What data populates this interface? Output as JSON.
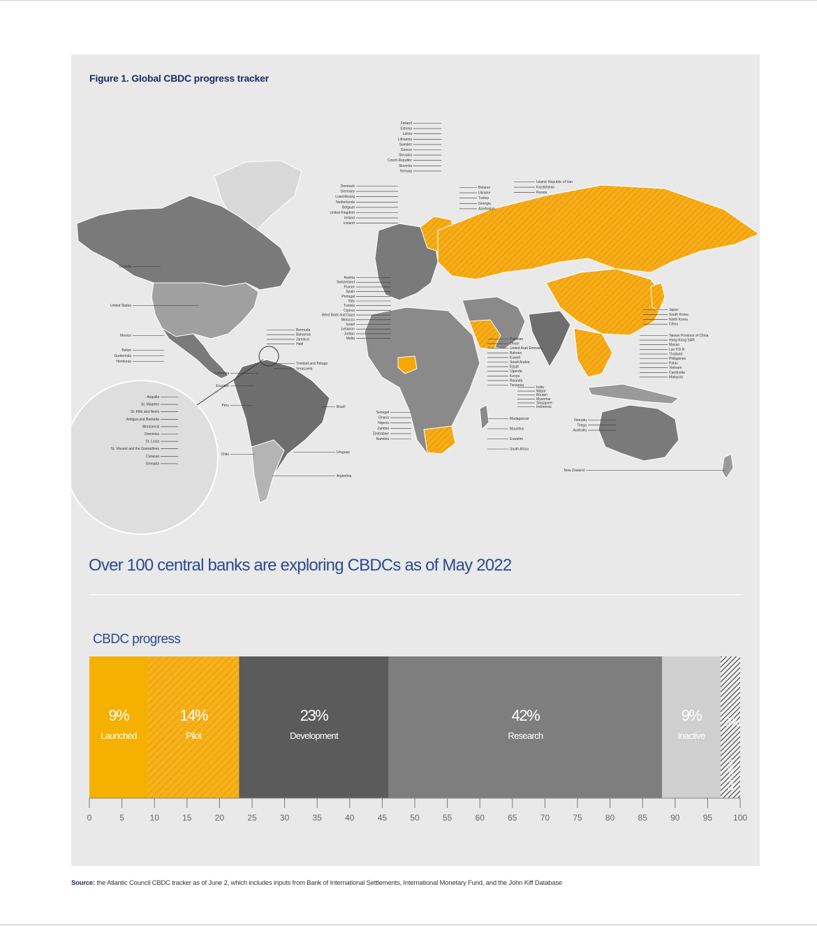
{
  "figure_title": "Figure 1. Global CBDC progress tracker",
  "headline": "Over 100 central banks are exploring CBDCs as of May 2022",
  "progress_title": "CBDC progress",
  "source_label": "Source:",
  "source_text": "the Atlantic Council CBDC tracker as of June 2, which includes inputs from Bank of International Settlements, International Monetary Fund, and the John Kiff Database",
  "colors": {
    "panel": "#e9e9ea",
    "launched": "#f5b000",
    "pilot": "#f5a500",
    "development": "#5b5b5b",
    "research": "#7e7e7e",
    "inactive": "#cfcfcf",
    "cancelled": "#555555",
    "title_blue": "#2c4a8f"
  },
  "map": {
    "europe_labels": [
      "Finland",
      "Estonia",
      "Latvia",
      "Lithuania",
      "Sweden",
      "Greece",
      "Slovakia",
      "Czech Republic",
      "Slovenia",
      "Norway"
    ],
    "west_europe_labels": [
      "Denmark",
      "Germany",
      "Luxembourg",
      "Netherlands",
      "Belgium",
      "United Kingdom",
      "Ireland",
      "Iceland"
    ],
    "east_labels": [
      "Belarus",
      "Ukraine",
      "Turkey",
      "Georgia",
      "Azerbaijan"
    ],
    "central_asia_labels": [
      "Islamic Republic of Iran",
      "Kazakhstan",
      "Russia"
    ],
    "mediterranean_labels": [
      "Austria",
      "Switzerland",
      "France",
      "Spain",
      "Portugal",
      "Italy",
      "Tunisia",
      "Cyprus",
      "West Bank and Gaza",
      "Morocco",
      "Israel",
      "Lebanon",
      "Jordan",
      "Malta"
    ],
    "africa_west_labels": [
      "Senegal",
      "Ghana",
      "Nigeria",
      "Zambia",
      "Zimbabwe",
      "Namibia"
    ],
    "middle_east_labels": [
      "Pakistan",
      "Oman",
      "United Arab Emirates",
      "Bahrain",
      "Kuwait",
      "Saudi Arabia",
      "Egypt",
      "Uganda",
      "Kenya",
      "Rwanda",
      "Tanzania"
    ],
    "south_asia_labels": [
      "India",
      "Nepal",
      "Bhutan",
      "Myanmar",
      "Singapore",
      "Indonesia"
    ],
    "east_asia_labels": [
      "Japan",
      "South Korea",
      "North Korea",
      "China"
    ],
    "se_asia_labels": [
      "Taiwan Province of China",
      "Hong Kong SAR",
      "Macao",
      "Lao P.D.R",
      "Thailand",
      "Philippines",
      "Palau",
      "Vietnam",
      "Cambodia",
      "Malaysia"
    ],
    "oceania_labels": [
      "Vanuatu",
      "Tonga",
      "Australia"
    ],
    "new_zealand": "New Zealand",
    "africa_east_labels": [
      "Madagascar",
      "Mauritius",
      "Eswatini",
      "South Africa"
    ],
    "americas_labels": [
      "Canada",
      "United States",
      "Mexico",
      "Belize",
      "Guatemala",
      "Honduras"
    ],
    "caribbean_labels": [
      "Bermuda",
      "Bahamas",
      "Jamaica",
      "Haiti"
    ],
    "trinidad_labels": [
      "Trinidad and Tobago",
      "Venezuela"
    ],
    "south_america_labels": [
      "Colombia",
      "Ecuador",
      "Peru",
      "Brazil",
      "Chile",
      "Uruguay",
      "Argentina"
    ],
    "inset_labels": [
      "Anguilla",
      "St. Maarten",
      "St. Kitts and Nevis",
      "Antigua and Barbuda",
      "Montserrat",
      "Dominica",
      "St. Lucia",
      "St. Vincent and the Grenadines",
      "Curacao",
      "Grenada"
    ]
  },
  "chart_data": {
    "type": "bar",
    "orientation": "horizontal-stacked",
    "title": "CBDC progress",
    "xlim": [
      0,
      100
    ],
    "xticks": [
      0,
      5,
      10,
      15,
      20,
      25,
      30,
      35,
      40,
      45,
      50,
      55,
      60,
      65,
      70,
      75,
      80,
      85,
      90,
      95,
      100
    ],
    "segments": [
      {
        "label": "Launched",
        "percent_label": "9%",
        "value": 9,
        "start": 0,
        "end": 9,
        "color": "#f5b000",
        "pattern": "solid"
      },
      {
        "label": "Pilot",
        "percent_label": "14%",
        "value": 14,
        "start": 9,
        "end": 23,
        "color": "#f5a500",
        "pattern": "hatched"
      },
      {
        "label": "Development",
        "percent_label": "23%",
        "value": 23,
        "start": 23,
        "end": 46,
        "color": "#5b5b5b",
        "pattern": "solid"
      },
      {
        "label": "Research",
        "percent_label": "42%",
        "value": 42,
        "start": 46,
        "end": 88,
        "color": "#7e7e7e",
        "pattern": "solid"
      },
      {
        "label": "Inactive",
        "percent_label": "9%",
        "value": 9,
        "start": 88,
        "end": 97,
        "color": "#cfcfcf",
        "pattern": "solid"
      },
      {
        "label": "Cancelled",
        "percent_label": "3%",
        "value": 3,
        "start": 97,
        "end": 100,
        "color": "#555555",
        "pattern": "hatched-gray"
      }
    ]
  }
}
